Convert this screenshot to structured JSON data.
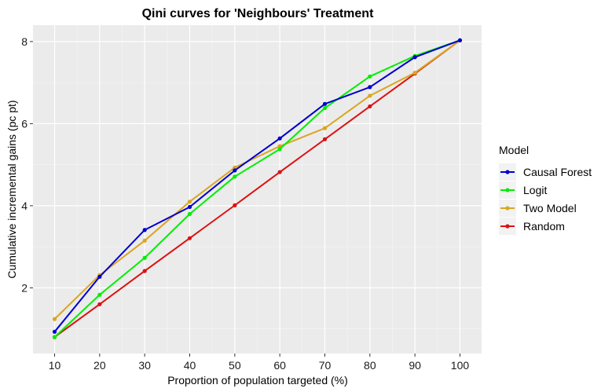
{
  "chart_data": {
    "type": "line",
    "title": "Qini curves for 'Neighbours' Treatment",
    "xlabel": "Proportion of population targeted (%)",
    "ylabel": "Cumulative incremental gains (pc pt)",
    "x": [
      10,
      20,
      30,
      40,
      50,
      60,
      70,
      80,
      90,
      100
    ],
    "x_ticks": [
      10,
      20,
      30,
      40,
      50,
      60,
      70,
      80,
      90,
      100
    ],
    "y_ticks": [
      2,
      4,
      6,
      8
    ],
    "xlim": [
      5.2,
      104.8
    ],
    "ylim": [
      0.4,
      8.4
    ],
    "grid": true,
    "legend_title": "Model",
    "legend_position": "right",
    "series": [
      {
        "name": "Causal Forest",
        "color": "#0000CD",
        "values": [
          0.93,
          2.27,
          3.41,
          3.97,
          4.86,
          5.64,
          6.48,
          6.89,
          7.62,
          8.03
        ]
      },
      {
        "name": "Logit",
        "color": "#00EE00",
        "values": [
          0.8,
          1.83,
          2.73,
          3.8,
          4.71,
          5.38,
          6.38,
          7.15,
          7.65,
          8.03
        ]
      },
      {
        "name": "Two Model",
        "color": "#DAA520",
        "values": [
          1.24,
          2.31,
          3.15,
          4.1,
          4.93,
          5.45,
          5.89,
          6.68,
          7.24,
          8.03
        ]
      },
      {
        "name": "Random",
        "color": "#DD1111",
        "values": [
          0.8,
          1.6,
          2.41,
          3.21,
          4.01,
          4.82,
          5.62,
          6.42,
          7.22,
          8.03
        ]
      }
    ]
  }
}
